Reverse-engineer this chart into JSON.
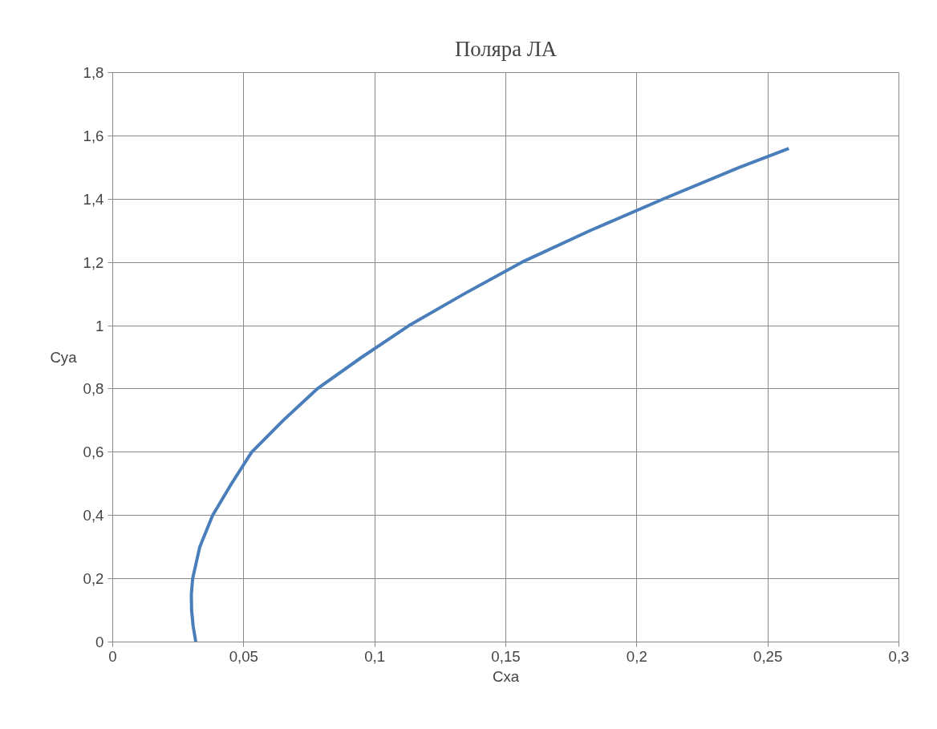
{
  "chart_data": {
    "type": "line",
    "title": "Поляра ЛА",
    "xlabel": "Cxa",
    "ylabel": "Cya",
    "x": [
      0.0317,
      0.0307,
      0.0301,
      0.03,
      0.0305,
      0.0332,
      0.0381,
      0.0453,
      0.053,
      0.065,
      0.078,
      0.095,
      0.113,
      0.134,
      0.156,
      0.182,
      0.21,
      0.239,
      0.258
    ],
    "series": [
      {
        "color": "#4a7ebb",
        "values": [
          0,
          0.05,
          0.1,
          0.15,
          0.2,
          0.3,
          0.4,
          0.5,
          0.6,
          0.7,
          0.8,
          0.9,
          1.0,
          1.1,
          1.2,
          1.3,
          1.4,
          1.5,
          1.56
        ]
      }
    ],
    "xlim": [
      0,
      0.3
    ],
    "ylim": [
      0,
      1.8
    ],
    "xticks": [
      0,
      {
        "value": 0.05,
        "label": "0,05"
      },
      {
        "value": 0.1,
        "label": "0,1"
      },
      {
        "value": 0.15,
        "label": "0,15"
      },
      {
        "value": 0.2,
        "label": "0,2"
      },
      {
        "value": 0.25,
        "label": "0,25"
      },
      {
        "value": 0.3,
        "label": "0,3"
      }
    ],
    "yticks": [
      0,
      {
        "value": 0.2,
        "label": "0,2"
      },
      {
        "value": 0.4,
        "label": "0,4"
      },
      {
        "value": 0.6,
        "label": "0,6"
      },
      {
        "value": 0.8,
        "label": "0,8"
      },
      1,
      {
        "value": 1.2,
        "label": "1,2"
      },
      {
        "value": 1.4,
        "label": "1,4"
      },
      {
        "value": 1.6,
        "label": "1,6"
      },
      {
        "value": 1.8,
        "label": "1,8"
      }
    ],
    "grid": true,
    "marker": "none",
    "line_style": "solid"
  }
}
